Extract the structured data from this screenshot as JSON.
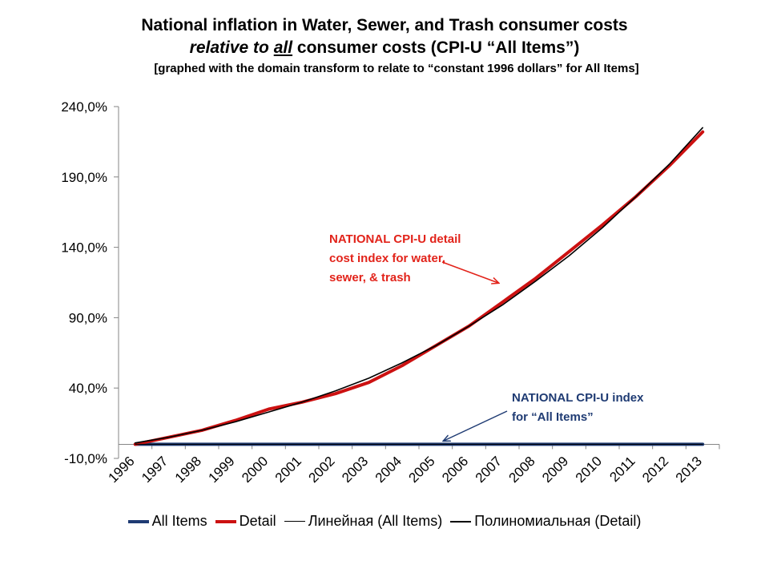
{
  "title": {
    "line1": "National inflation in Water, Sewer, and Trash consumer costs",
    "line2_a": "relative to",
    "line2_b": "all",
    "line2_c": " consumer costs (CPI-U “All Items”)",
    "line3": "[graphed with the domain transform to relate to “constant  1996 dollars” for All Items]"
  },
  "annotations": {
    "detail": [
      "NATIONAL CPI-U detail",
      "cost index for water,",
      "sewer, & trash"
    ],
    "all_items": [
      "NATIONAL CPI-U index",
      "for “All Items”"
    ]
  },
  "colors": {
    "all_items": "#1f3b73",
    "detail": "#cc1111",
    "trend": "#000000",
    "axis": "#868686",
    "annotation_detail": "#e2231a",
    "annotation_all": "#1f3b73"
  },
  "chart_data": {
    "type": "line",
    "x": [
      "1996",
      "1997",
      "1998",
      "1999",
      "2000",
      "2001",
      "2002",
      "2003",
      "2004",
      "2005",
      "2006",
      "2007",
      "2008",
      "2009",
      "2010",
      "2011",
      "2012",
      "2013"
    ],
    "ylim": [
      -10,
      240
    ],
    "yticks": [
      "-10,0%",
      "40,0%",
      "90,0%",
      "140,0%",
      "190,0%",
      "240,0%"
    ],
    "ytick_values": [
      -10,
      40,
      90,
      140,
      190,
      240
    ],
    "grid": false,
    "legend_position": "bottom",
    "series": [
      {
        "name": "All Items",
        "values": [
          0,
          0,
          0,
          0,
          0,
          0,
          0,
          0,
          0,
          0,
          0,
          0,
          0,
          0,
          0,
          0,
          0,
          0
        ]
      },
      {
        "name": "Detail",
        "values": [
          0,
          5,
          10,
          17,
          25,
          30,
          36,
          44,
          56,
          70,
          84,
          101,
          118,
          137,
          156,
          176,
          198,
          222
        ]
      },
      {
        "name": "Линейная (All Items)",
        "values": [
          0,
          0,
          0,
          0,
          0,
          0,
          0,
          0,
          0,
          0,
          0,
          0,
          0,
          0,
          0,
          0,
          0,
          0
        ]
      },
      {
        "name": "Полиномиальная (Detail)",
        "values": [
          1,
          5,
          10,
          16,
          23,
          30,
          38,
          47,
          58,
          70,
          84,
          99,
          116,
          134,
          154,
          176,
          199,
          225
        ]
      }
    ]
  }
}
